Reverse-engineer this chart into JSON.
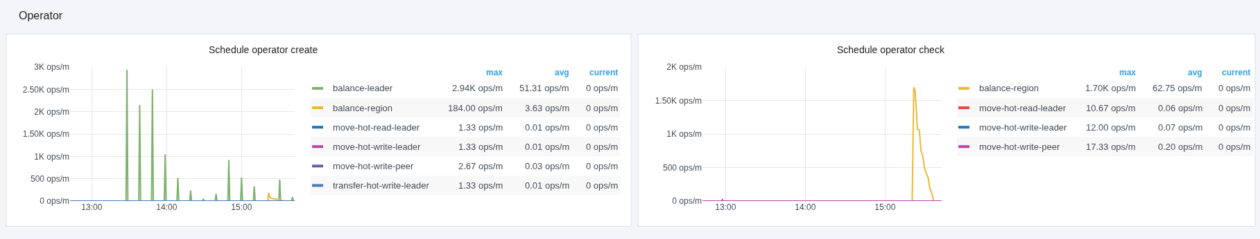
{
  "chart_data": [
    {
      "type": "other",
      "title": "Operator"
    },
    {
      "type": "line",
      "title": "Schedule operator create",
      "xlim": [
        12.71,
        15.71
      ],
      "ylim": [
        0,
        3000
      ],
      "xticks": [
        {
          "value": 13,
          "label": "13:00"
        },
        {
          "value": 14,
          "label": "14:00"
        },
        {
          "value": 15,
          "label": "15:00"
        }
      ],
      "yticks": [
        {
          "value": 0,
          "label": "0 ops/m"
        },
        {
          "value": 500,
          "label": "500 ops/m"
        },
        {
          "value": 1000,
          "label": "1K ops/m"
        },
        {
          "value": 1500,
          "label": "1.50K ops/m"
        },
        {
          "value": 2000,
          "label": "2K ops/m"
        },
        {
          "value": 2500,
          "label": "2.50K ops/m"
        },
        {
          "value": 3000,
          "label": "3K ops/m"
        }
      ],
      "grid": true,
      "legend": "right",
      "marker": "none",
      "line_style": "solid",
      "series": [
        {
          "name": "balance-leader",
          "color": "#7eb26d",
          "x": [
            13.458,
            13.47,
            13.482,
            13.628,
            13.64,
            13.652,
            13.798,
            13.81,
            13.822,
            13.968,
            13.98,
            13.992,
            14.138,
            14.15,
            14.162,
            14.308,
            14.32,
            14.332,
            14.478,
            14.49,
            14.502,
            14.648,
            14.66,
            14.672,
            14.818,
            14.83,
            14.842,
            14.988,
            15.0,
            15.012,
            15.158,
            15.17,
            15.182,
            15.498,
            15.51,
            15.522,
            15.668,
            15.68,
            15.692
          ],
          "values": [
            0,
            2940,
            0,
            0,
            2150,
            0,
            0,
            2500,
            0,
            0,
            1050,
            0,
            0,
            520,
            0,
            0,
            240,
            0,
            0,
            50,
            0,
            0,
            160,
            0,
            0,
            920,
            0,
            0,
            530,
            0,
            0,
            330,
            0,
            0,
            480,
            0,
            0,
            90,
            0
          ]
        },
        {
          "name": "balance-region",
          "color": "#eab839",
          "x": [
            15.35,
            15.36,
            15.38,
            15.4,
            15.43,
            15.47,
            15.52,
            15.56
          ],
          "values": [
            0,
            180,
            80,
            60,
            50,
            40,
            30,
            0
          ]
        },
        {
          "name": "move-hot-read-leader",
          "color": "#1f78c1"
        },
        {
          "name": "move-hot-write-leader",
          "color": "#ba43a9"
        },
        {
          "name": "move-hot-write-peer",
          "color": "#705da0"
        },
        {
          "name": "transfer-hot-write-leader",
          "color": "#447ebc",
          "x": [
            12.71,
            15.71
          ],
          "values": [
            0,
            0
          ]
        }
      ],
      "annotations": [
        "max",
        "avg",
        "current",
        "2.94K ops/m",
        "51.31 ops/m",
        "0 ops/m",
        "184.00 ops/m",
        "3.63 ops/m",
        "0 ops/m",
        "1.33 ops/m",
        "0.01 ops/m",
        "0 ops/m",
        "1.33 ops/m",
        "0.01 ops/m",
        "0 ops/m",
        "2.67 ops/m",
        "0.03 ops/m",
        "0 ops/m",
        "1.33 ops/m",
        "0.01 ops/m",
        "0 ops/m"
      ]
    },
    {
      "type": "line",
      "title": "Schedule operator check",
      "xlim": [
        12.71,
        15.71
      ],
      "ylim": [
        0,
        2000
      ],
      "xticks": [
        {
          "value": 13,
          "label": "13:00"
        },
        {
          "value": 14,
          "label": "14:00"
        },
        {
          "value": 15,
          "label": "15:00"
        }
      ],
      "yticks": [
        {
          "value": 0,
          "label": "0 ops/m"
        },
        {
          "value": 500,
          "label": "500 ops/m"
        },
        {
          "value": 1000,
          "label": "1K ops/m"
        },
        {
          "value": 1500,
          "label": "1.50K ops/m"
        },
        {
          "value": 2000,
          "label": "2K ops/m"
        }
      ],
      "grid": true,
      "legend": "right",
      "marker": "none",
      "line_style": "solid",
      "series": [
        {
          "name": "balance-region",
          "color": "#eab839",
          "x": [
            12.71,
            15.34,
            15.36,
            15.377,
            15.406,
            15.43,
            15.45,
            15.47,
            15.49,
            15.51,
            15.54,
            15.56,
            15.59,
            15.61,
            15.71
          ],
          "values": [
            0,
            0,
            1700,
            1650,
            1070,
            1060,
            750,
            690,
            520,
            430,
            350,
            200,
            100,
            0,
            0
          ]
        },
        {
          "name": "move-hot-read-leader",
          "color": "#e24d42"
        },
        {
          "name": "move-hot-write-leader",
          "color": "#1f78c1"
        },
        {
          "name": "move-hot-write-peer",
          "color": "#ba43a9",
          "x": [
            12.71,
            12.95,
            12.96,
            12.97,
            15.71
          ],
          "values": [
            0,
            0,
            20,
            0,
            0
          ]
        }
      ],
      "annotations": [
        "max",
        "avg",
        "current",
        "1.70K ops/m",
        "62.75 ops/m",
        "0 ops/m",
        "10.67 ops/m",
        "0.06 ops/m",
        "0 ops/m",
        "12.00 ops/m",
        "0.07 ops/m",
        "0 ops/m",
        "17.33 ops/m",
        "0.20 ops/m",
        "0 ops/m"
      ]
    }
  ]
}
